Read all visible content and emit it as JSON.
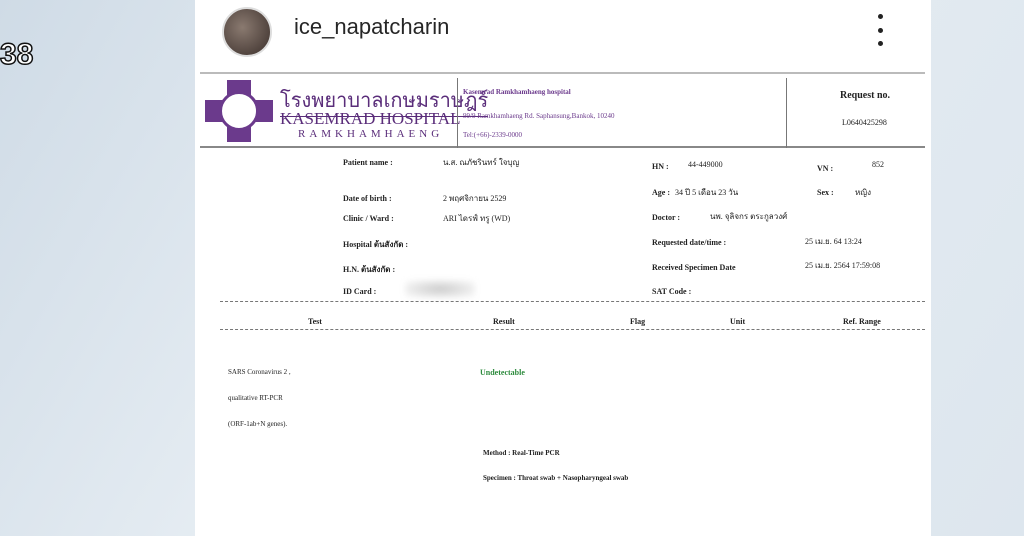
{
  "overlay": {
    "counter": "38"
  },
  "post": {
    "username": "ice_napatcharin",
    "more_icon": "more-vertical-icon"
  },
  "document": {
    "header": {
      "thai_name": "โรงพยาบาลเกษมราษฎร์",
      "english_name": "KASEMRAD HOSPITAL",
      "branch": "RAMKHAMHAENG",
      "address_title": "Kasemrad Ramkhamhaeng hospital",
      "address": "99/9 Ramkhamhaeng Rd. Saphansung,Bankok, 10240",
      "tel": "Tel:(+66)-2339-0000",
      "request_label": "Request no.",
      "request_no": "L0640425298",
      "brand_color": "#6b3a8c"
    },
    "patient": {
      "name_label": "Patient name :",
      "name": "น.ส. ณภัชรินทร์ ใจบุญ",
      "dob_label": "Date of birth :",
      "dob": "2 พฤศจิกายน 2529",
      "clinic_label": "Clinic / Ward :",
      "clinic": "ARI ไดรฟ์ ทรู (WD)",
      "hospital_label": "Hospital ต้นสังกัด :",
      "hn2_label": "H.N. ต้นสังกัด :",
      "id_label": "ID Card :",
      "hn_label": "HN :",
      "hn": "44-449000",
      "vn_label": "VN :",
      "vn": "852",
      "age_label": "Age :",
      "age": "34 ปี 5 เดือน 23 วัน",
      "sex_label": "Sex :",
      "sex": "หญิง",
      "doctor_label": "Doctor :",
      "doctor": "นพ. จุลิจกร ตระกูลวงศ์",
      "requested_label": "Requested date/time :",
      "requested": "25 เม.ย. 64 13:24",
      "received_label": "Received Specimen Date",
      "received": "25 เม.ย. 2564 17:59:08",
      "sat_label": "SAT Code :"
    },
    "columns": [
      "Test",
      "Result",
      "Flag",
      "Unit",
      "Ref. Range"
    ],
    "result": {
      "test_lines": [
        "SARS Coronavirus 2 ,",
        "qualitative RT-PCR",
        "(ORF-1ab+N genes)."
      ],
      "value": "Undetectable",
      "result_color": "#2e8b3e",
      "method": "Method : Real-Time PCR",
      "specimen": "Specimen : Throat swab + Nasopharyngeal swab"
    }
  }
}
